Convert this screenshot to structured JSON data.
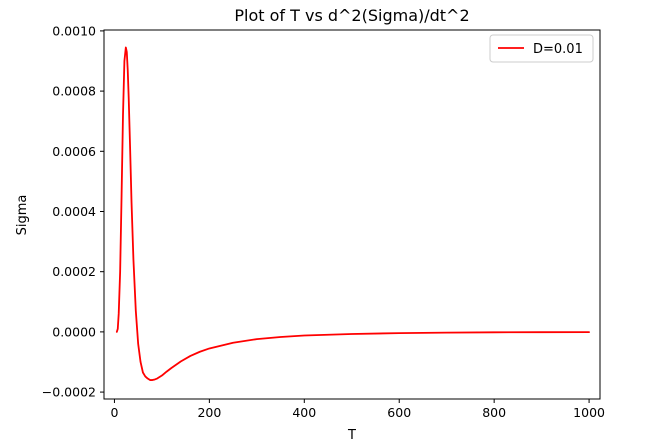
{
  "chart_data": {
    "type": "line",
    "title": "Plot of T vs d^2(Sigma)/dt^2",
    "xlabel": "T",
    "ylabel": "Sigma",
    "xlim": [
      -22,
      1023
    ],
    "ylim": [
      -0.000223,
      0.001003
    ],
    "xticks": [
      0,
      200,
      400,
      600,
      800,
      1000
    ],
    "xtick_labels": [
      "0",
      "200",
      "400",
      "600",
      "800",
      "1000"
    ],
    "yticks": [
      -0.0002,
      0.0,
      0.0002,
      0.0004,
      0.0006,
      0.0008,
      0.001
    ],
    "ytick_labels": [
      "−0.0002",
      "0.0000",
      "0.0002",
      "0.0004",
      "0.0006",
      "0.0008",
      "0.0010"
    ],
    "grid": false,
    "legend_position": "top-right",
    "series": [
      {
        "name": "D=0.01",
        "color": "#ff0000",
        "x": [
          5,
          7,
          9,
          12,
          15,
          18,
          21,
          24,
          26,
          28,
          30,
          33,
          36,
          40,
          45,
          50,
          55,
          60,
          65,
          70,
          75,
          80,
          85,
          90,
          95,
          100,
          110,
          120,
          140,
          160,
          180,
          200,
          250,
          300,
          350,
          400,
          500,
          600,
          700,
          800,
          900,
          1000
        ],
        "y": [
          0.0,
          1e-05,
          6e-05,
          0.0002,
          0.00045,
          0.00072,
          0.0009,
          0.000945,
          0.00093,
          0.00087,
          0.00078,
          0.00061,
          0.00043,
          0.00024,
          7e-05,
          -4e-05,
          -0.0001,
          -0.000135,
          -0.000148,
          -0.000155,
          -0.00016,
          -0.00016,
          -0.000158,
          -0.000155,
          -0.00015,
          -0.000145,
          -0.000132,
          -0.00012,
          -9.8e-05,
          -8e-05,
          -6.6e-05,
          -5.5e-05,
          -3.6e-05,
          -2.4e-05,
          -1.7e-05,
          -1.2e-05,
          -7e-06,
          -4e-06,
          -2.5e-06,
          -1.5e-06,
          -1e-06,
          -8e-07
        ]
      }
    ]
  }
}
